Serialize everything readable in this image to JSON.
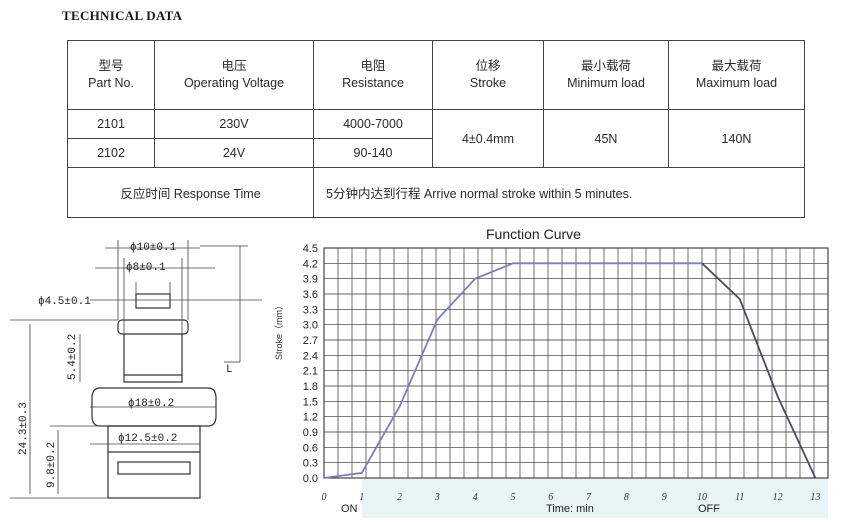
{
  "heading": "TECHNICAL DATA",
  "table": {
    "headers": [
      {
        "cn": "型号",
        "en": "Part No."
      },
      {
        "cn": "电压",
        "en": "Operating Voltage"
      },
      {
        "cn": "电阻",
        "en": "Resistance"
      },
      {
        "cn": "位移",
        "en": "Stroke"
      },
      {
        "cn": "最小载荷",
        "en": "Minimum load"
      },
      {
        "cn": "最大载荷",
        "en": "Maximum  load"
      }
    ],
    "rows": [
      {
        "part": "2101",
        "voltage": "230V",
        "resistance": "4000-7000"
      },
      {
        "part": "2102",
        "voltage": "24V",
        "resistance": "90-140"
      }
    ],
    "stroke": "4±0.4mm",
    "min_load": "45N",
    "max_load": "140N",
    "response_label": "反应时间 Response Time",
    "response_value": "5分钟内达到行程 Arrive normal stroke within 5 minutes."
  },
  "drawing": {
    "dims": [
      "ϕ10±0.1",
      "ϕ8±0.1",
      "ϕ4.5±0.1",
      "5.4±0.2",
      "ϕ18±0.2",
      "ϕ12.5±0.2",
      "24.3±0.3",
      "9.8±0.2",
      "L"
    ]
  },
  "chart_data": {
    "type": "line",
    "title": "Function Curve",
    "xlabel": "Time: min",
    "ylabel": "Stroke（mm）",
    "x_ticks": [
      "0",
      "1",
      "2",
      "3",
      "4",
      "5",
      "6",
      "7",
      "8",
      "9",
      "10",
      "11",
      "12",
      "13"
    ],
    "y_ticks": [
      "0.0",
      "0.3",
      "0.6",
      "0.9",
      "1.2",
      "1.5",
      "1.8",
      "2.1",
      "2.4",
      "2.7",
      "3.0",
      "3.3",
      "3.6",
      "3.9",
      "4.2",
      "4.5"
    ],
    "xlim": [
      0,
      13
    ],
    "ylim": [
      0,
      4.5
    ],
    "x_markers": {
      "on": "ON",
      "off": "OFF"
    },
    "rise": {
      "color": "#7a7fc4",
      "x": [
        0,
        1,
        2,
        3,
        4,
        5,
        6,
        7,
        8,
        9,
        10
      ],
      "y": [
        0,
        0.1,
        1.4,
        3.1,
        3.9,
        4.2,
        4.2,
        4.2,
        4.2,
        4.2,
        4.2
      ]
    },
    "fall": {
      "color": "#4a4a6a",
      "x": [
        10,
        11,
        12,
        13
      ],
      "y": [
        4.2,
        3.5,
        1.6,
        0
      ]
    },
    "grid": true
  }
}
